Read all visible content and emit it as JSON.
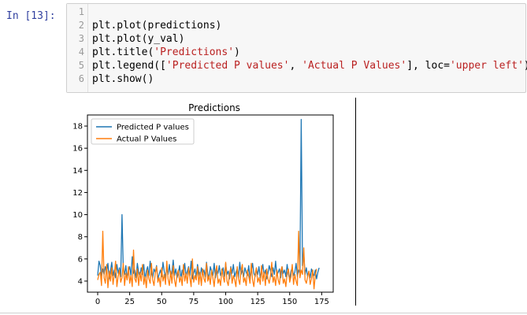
{
  "prompt": "In [13]:",
  "code_lines": [
    {
      "n": "1",
      "segments": [
        {
          "t": ""
        }
      ]
    },
    {
      "n": "2",
      "segments": [
        {
          "t": "plt.plot(predictions)"
        }
      ]
    },
    {
      "n": "3",
      "segments": [
        {
          "t": "plt.plot(y_val)"
        }
      ]
    },
    {
      "n": "4",
      "segments": [
        {
          "t": "plt.title("
        },
        {
          "t": "'Predictions'",
          "s": 1
        },
        {
          "t": ")"
        }
      ]
    },
    {
      "n": "5",
      "segments": [
        {
          "t": "plt.legend(["
        },
        {
          "t": "'Predicted P values'",
          "s": 1
        },
        {
          "t": ", "
        },
        {
          "t": "'Actual P Values'",
          "s": 1
        },
        {
          "t": "], loc="
        },
        {
          "t": "'upper left'",
          "s": 1
        },
        {
          "t": ")"
        }
      ]
    },
    {
      "n": "6",
      "segments": [
        {
          "t": "plt.show()"
        }
      ]
    }
  ],
  "chart_data": {
    "type": "line",
    "title": "Predictions",
    "xlabel": "",
    "ylabel": "",
    "xlim": [
      -8,
      184
    ],
    "ylim": [
      3.0,
      19.0
    ],
    "xticks": [
      0,
      25,
      50,
      75,
      100,
      125,
      150,
      175
    ],
    "yticks": [
      4,
      6,
      8,
      10,
      12,
      14,
      16,
      18
    ],
    "legend_position": "upper-left",
    "grid": false,
    "series": [
      {
        "name": "Predicted P values",
        "color": "#1f77b4",
        "values": [
          4.5,
          5.8,
          5.4,
          4.4,
          5.1,
          4.6,
          5.3,
          4.8,
          5.6,
          4.2,
          4.9,
          5.7,
          4.5,
          5.0,
          4.3,
          5.5,
          4.7,
          5.2,
          4.4,
          10.0,
          5.1,
          4.6,
          5.4,
          4.2,
          4.9,
          5.3,
          4.5,
          6.2,
          4.7,
          5.0,
          4.3,
          5.6,
          4.8,
          4.4,
          5.2,
          4.6,
          5.5,
          4.1,
          4.9,
          5.3,
          4.5,
          5.8,
          4.7,
          4.3,
          5.1,
          4.8,
          5.4,
          4.2,
          4.6,
          5.0,
          4.4,
          5.7,
          4.9,
          4.3,
          5.2,
          4.6,
          5.5,
          4.4,
          4.8,
          5.9,
          4.5,
          5.1,
          4.3,
          4.7,
          5.4,
          4.2,
          5.0,
          4.6,
          5.6,
          4.4,
          4.9,
          5.3,
          4.5,
          5.8,
          4.2,
          4.7,
          5.1,
          4.4,
          5.5,
          4.8,
          4.3,
          5.2,
          4.6,
          5.0,
          4.4,
          5.7,
          4.7,
          4.2,
          5.3,
          4.9,
          4.5,
          5.6,
          4.3,
          5.0,
          4.7,
          5.4,
          4.5,
          4.8,
          5.2,
          4.4,
          5.6,
          4.6,
          4.9,
          4.2,
          5.3,
          4.7,
          5.5,
          4.4,
          4.8,
          5.1,
          4.3,
          5.7,
          4.6,
          5.0,
          4.4,
          5.2,
          4.8,
          4.5,
          5.4,
          4.2,
          4.9,
          5.6,
          4.7,
          4.4,
          5.1,
          4.6,
          5.3,
          4.3,
          4.8,
          5.5,
          4.5,
          5.0,
          4.2,
          4.7,
          5.4,
          4.9,
          4.4,
          5.2,
          4.6,
          5.8,
          4.5,
          4.8,
          5.1,
          4.3,
          5.3,
          4.7,
          5.0,
          4.4,
          5.5,
          4.6,
          4.2,
          4.9,
          5.2,
          4.5,
          4.8,
          5.6,
          4.4,
          5.0,
          4.7,
          18.6,
          5.4,
          6.5,
          4.6,
          5.2,
          4.4,
          4.9,
          4.3,
          5.1,
          4.7,
          4.5,
          5.0,
          4.2,
          4.8,
          5.2
        ]
      },
      {
        "name": "Actual P Values",
        "color": "#ff7f0e",
        "values": [
          4.1,
          4.6,
          4.8,
          3.6,
          8.5,
          4.3,
          3.8,
          5.5,
          3.4,
          4.9,
          4.0,
          5.2,
          3.7,
          4.6,
          5.8,
          3.5,
          4.4,
          5.0,
          3.9,
          4.3,
          5.6,
          3.6,
          4.7,
          4.1,
          5.3,
          3.8,
          4.5,
          3.5,
          6.8,
          4.2,
          3.9,
          5.1,
          3.6,
          4.8,
          4.0,
          5.5,
          3.7,
          4.4,
          3.4,
          5.0,
          4.2,
          3.8,
          5.6,
          4.1,
          3.6,
          4.7,
          5.3,
          3.9,
          4.3,
          3.5,
          5.2,
          4.0,
          4.6,
          3.7,
          5.8,
          4.2,
          3.6,
          4.9,
          3.8,
          5.4,
          4.1,
          3.5,
          4.6,
          5.0,
          3.9,
          4.4,
          3.6,
          5.5,
          4.0,
          4.7,
          3.8,
          5.2,
          4.3,
          3.5,
          6.0,
          3.9,
          4.5,
          4.1,
          5.3,
          3.7,
          4.8,
          3.6,
          5.1,
          4.2,
          3.9,
          5.6,
          4.0,
          4.5,
          3.7,
          5.0,
          4.3,
          3.5,
          4.8,
          5.4,
          3.8,
          4.2,
          3.6,
          5.1,
          4.4,
          3.9,
          5.7,
          4.0,
          3.6,
          4.7,
          5.2,
          3.8,
          4.5,
          4.1,
          3.5,
          5.3,
          4.2,
          3.7,
          4.9,
          5.5,
          3.9,
          4.3,
          3.6,
          5.0,
          4.4,
          3.8,
          5.6,
          4.1,
          3.5,
          4.6,
          5.2,
          3.9,
          4.3,
          3.7,
          5.4,
          4.0,
          4.8,
          3.6,
          5.1,
          4.2,
          3.8,
          4.5,
          5.7,
          3.9,
          4.4,
          3.6,
          5.0,
          4.1,
          3.7,
          4.9,
          5.3,
          3.8,
          4.2,
          3.5,
          4.7,
          5.1,
          3.9,
          4.4,
          5.5,
          3.7,
          4.6,
          4.0,
          3.6,
          8.5,
          4.3,
          5.0,
          4.6,
          7.0,
          4.1,
          3.8,
          4.4,
          4.9,
          3.7,
          4.2,
          5.0,
          3.3,
          4.5,
          5.1
        ]
      }
    ]
  }
}
